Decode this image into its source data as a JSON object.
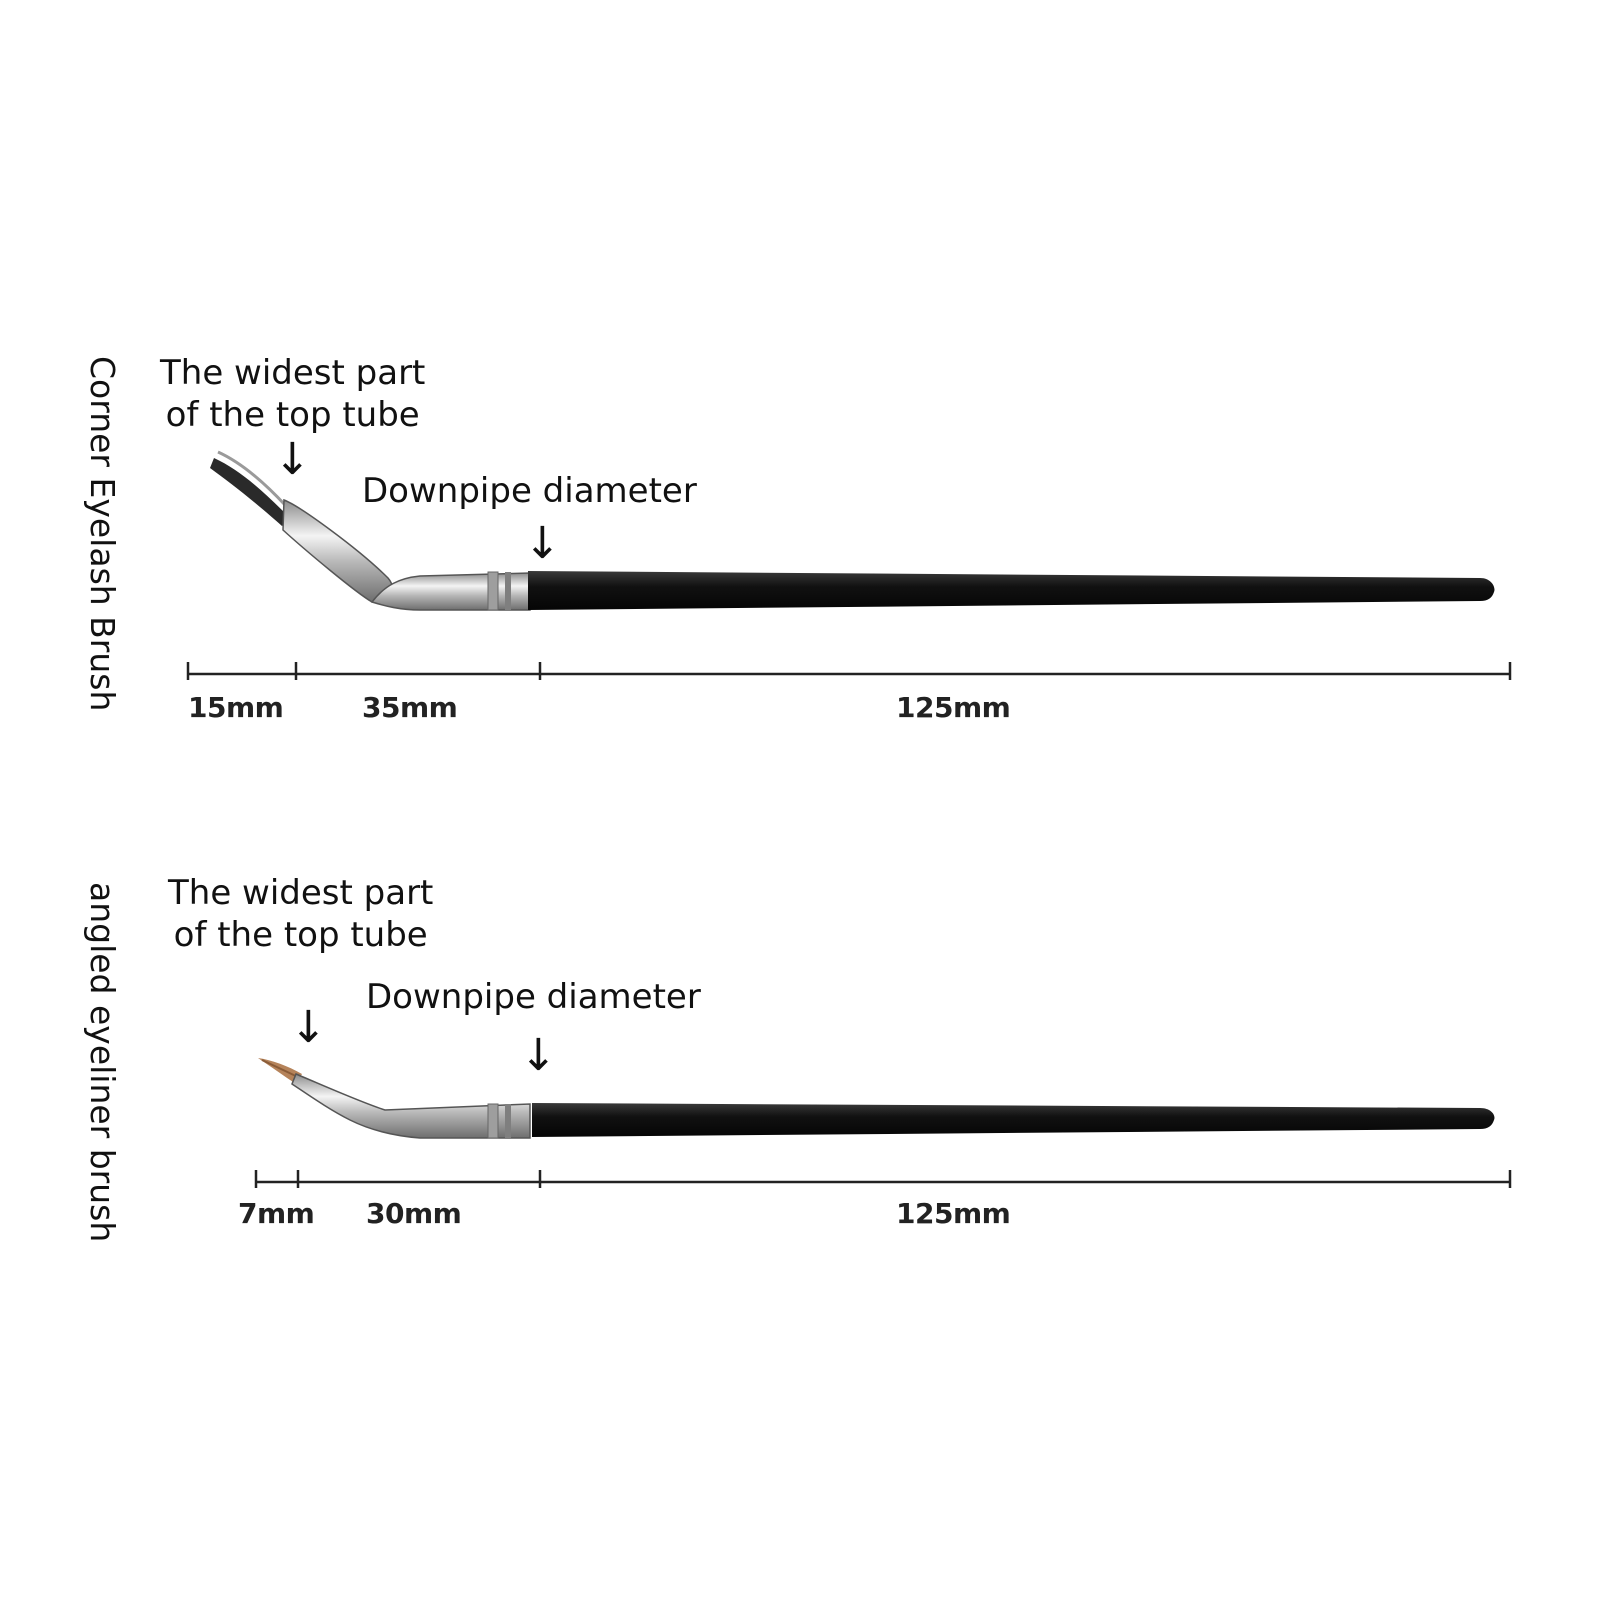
{
  "panels": [
    {
      "title": "Corner Eyelash Brush",
      "top_label_line1": "The widest part",
      "top_label_line2": "of the top tube",
      "downpipe_label": "Downpipe diameter",
      "measurements": [
        "15mm",
        "35mm",
        "125mm"
      ]
    },
    {
      "title": "angled eyeliner brush",
      "top_label_line1": "The widest part",
      "top_label_line2": "of the top tube",
      "downpipe_label": "Downpipe diameter",
      "measurements": [
        "7mm",
        "30mm",
        "125mm"
      ]
    }
  ],
  "arrow_glyph": "↓",
  "colors": {
    "handle": "#111111",
    "ferrule": "#c9c9c9",
    "bristle_dark": "#2a2a2a",
    "bristle_tan": "#b5835a",
    "line": "#222222"
  }
}
